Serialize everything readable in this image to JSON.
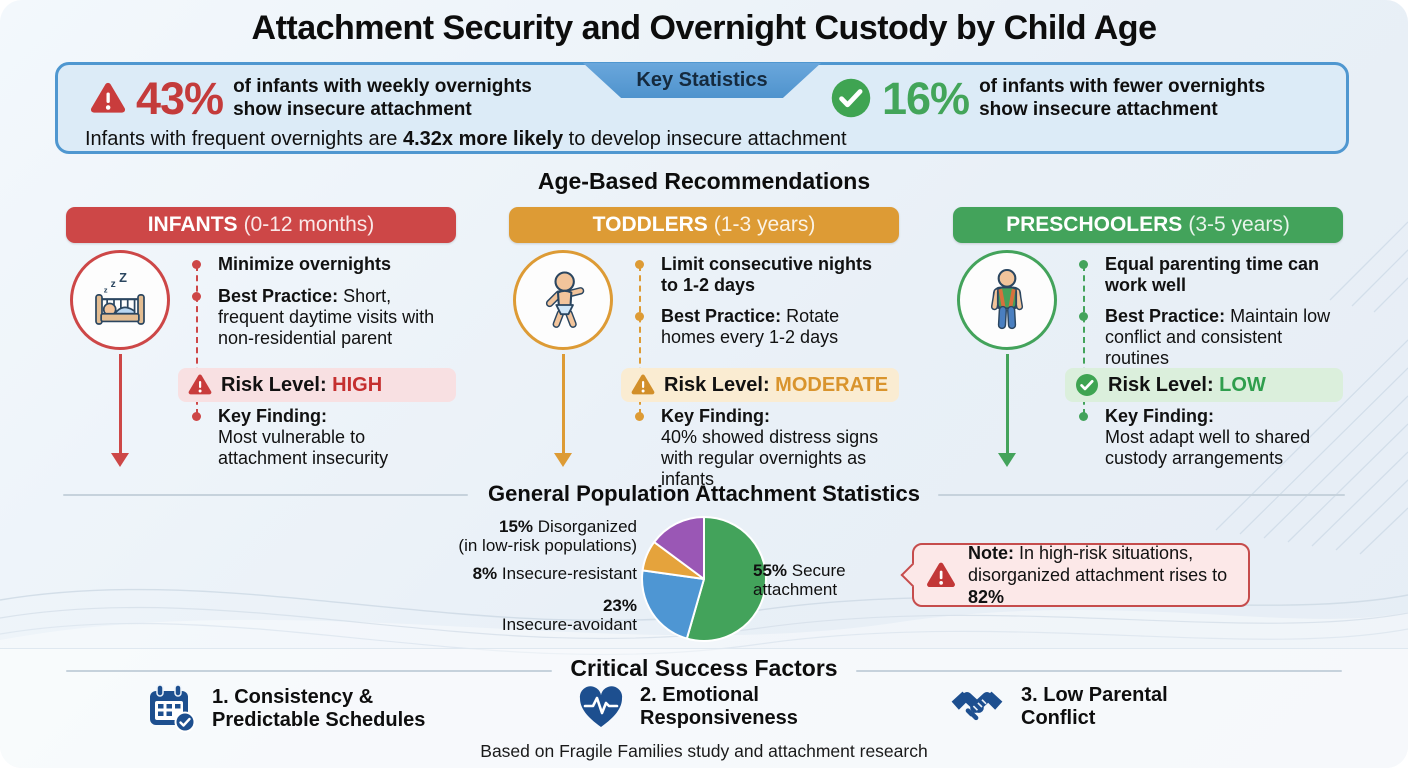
{
  "title": "Attachment Security and Overnight Custody by Child Age",
  "colors": {
    "accent_blue": "#4f97d0",
    "risk_red": "#cd4747",
    "risk_orange": "#dd9b35",
    "risk_green": "#43a35b",
    "icon_dark_blue": "#1d4f8f"
  },
  "key_statistics": {
    "tab_label": "Key Statistics",
    "warning_stat": {
      "value": "43%",
      "line1": "of infants with weekly overnights",
      "line2": "show insecure attachment"
    },
    "positive_stat": {
      "value": "16%",
      "line1": "of infants with fewer overnights",
      "line2": "show insecure attachment"
    },
    "footnote": {
      "prefix": "Infants with frequent overnights are ",
      "bold": "4.32x more likely",
      "suffix": " to develop insecure attachment"
    }
  },
  "recommendations": {
    "heading": "Age-Based Recommendations",
    "columns": [
      {
        "title": "INFANTS",
        "age_range": "(0-12 months)",
        "bullet1": "Minimize overnights",
        "best_practice_label": "Best Practice:",
        "best_practice_text": " Short, frequent daytime visits with non-residential parent",
        "risk_label": "Risk Level: ",
        "risk_value": "HIGH",
        "key_finding_label": "Key Finding:",
        "key_finding_text": "Most vulnerable to attachment insecurity"
      },
      {
        "title": "TODDLERS",
        "age_range": "(1-3 years)",
        "bullet1": "Limit consecutive nights to 1-2 days",
        "best_practice_label": "Best Practice:",
        "best_practice_text": " Rotate homes every 1-2 days",
        "risk_label": "Risk Level: ",
        "risk_value": "MODERATE",
        "key_finding_label": "Key Finding:",
        "key_finding_text": "40% showed distress signs with regular overnights as infants"
      },
      {
        "title": "PRESCHOOLERS",
        "age_range": "(3-5 years)",
        "bullet1": "Equal parenting time can work well",
        "best_practice_label": "Best Practice:",
        "best_practice_text": " Maintain low conflict and consistent routines",
        "risk_label": "Risk Level: ",
        "risk_value": "LOW",
        "key_finding_label": "Key Finding:",
        "key_finding_text": "Most adapt well to shared custody arrangements"
      }
    ]
  },
  "population_section": {
    "heading": "General Population Attachment Statistics",
    "labels": {
      "disorganized_value": "15%",
      "disorganized_text": " Disorganized",
      "disorganized_line2": "(in low-risk populations)",
      "resistant_value": "8%",
      "resistant_text": " Insecure-resistant",
      "avoidant_value": "23%",
      "avoidant_line2": "Insecure-avoidant",
      "secure_value": "55%",
      "secure_text": " Secure",
      "secure_line2": "attachment"
    },
    "note": {
      "label": "Note:",
      "line1_rest": " In high-risk situations,",
      "line2_prefix": "disorganized attachment rises to ",
      "line2_bold": "82%"
    }
  },
  "chart_data": {
    "type": "pie",
    "title": "General Population Attachment Statistics",
    "labels": [
      "Secure attachment",
      "Insecure-avoidant",
      "Insecure-resistant",
      "Disorganized (in low-risk populations)"
    ],
    "values": [
      55,
      23,
      8,
      15
    ],
    "colors": [
      "#43a35b",
      "#4e96d3",
      "#e5a33c",
      "#9a57b5"
    ],
    "start_angle_deg": 0,
    "direction": "clockwise",
    "annotation": "In high-risk situations, disorganized attachment rises to 82%"
  },
  "success_factors": {
    "heading": "Critical Success Factors",
    "items": [
      {
        "line1": "1. Consistency &",
        "line2": "Predictable Schedules"
      },
      {
        "line1": "2. Emotional",
        "line2": "Responsiveness"
      },
      {
        "line1": "3. Low Parental",
        "line2": "Conflict"
      }
    ],
    "footer": "Based on Fragile Families study and attachment research"
  }
}
